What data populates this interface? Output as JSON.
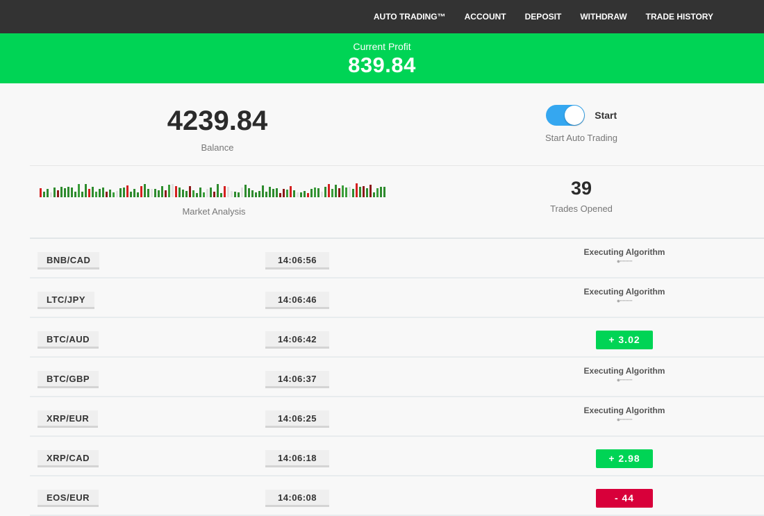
{
  "nav": [
    "AUTO TRADING™",
    "ACCOUNT",
    "DEPOSIT",
    "WITHDRAW",
    "TRADE HISTORY"
  ],
  "profit": {
    "label": "Current Profit",
    "value": "839.84"
  },
  "balance": {
    "value": "4239.84",
    "label": "Balance"
  },
  "auto_trading": {
    "toggle_on": true,
    "toggle_label": "Start",
    "label": "Start Auto Trading"
  },
  "market_analysis": {
    "label": "Market Analysis"
  },
  "trades_opened": {
    "value": "39",
    "label": "Trades Opened"
  },
  "colors": {
    "nav": "#333333",
    "profit": "#00d455",
    "positive": "#00d455",
    "negative": "#d8003a",
    "toggle": "#35a7f0"
  },
  "trades": [
    {
      "pair": "BNB/CAD",
      "time": "14:06:56",
      "status": "Executing Algorithm"
    },
    {
      "pair": "LTC/JPY",
      "time": "14:06:46",
      "status": "Executing Algorithm"
    },
    {
      "pair": "BTC/AUD",
      "time": "14:06:42",
      "result": "+  3.02",
      "type": "pos"
    },
    {
      "pair": "BTC/GBP",
      "time": "14:06:37",
      "status": "Executing Algorithm"
    },
    {
      "pair": "XRP/EUR",
      "time": "14:06:25",
      "status": "Executing Algorithm"
    },
    {
      "pair": "XRP/CAD",
      "time": "14:06:18",
      "result": "+  2.98",
      "type": "pos"
    },
    {
      "pair": "EOS/EUR",
      "time": "14:06:08",
      "result": "-    44",
      "type": "neg"
    }
  ]
}
